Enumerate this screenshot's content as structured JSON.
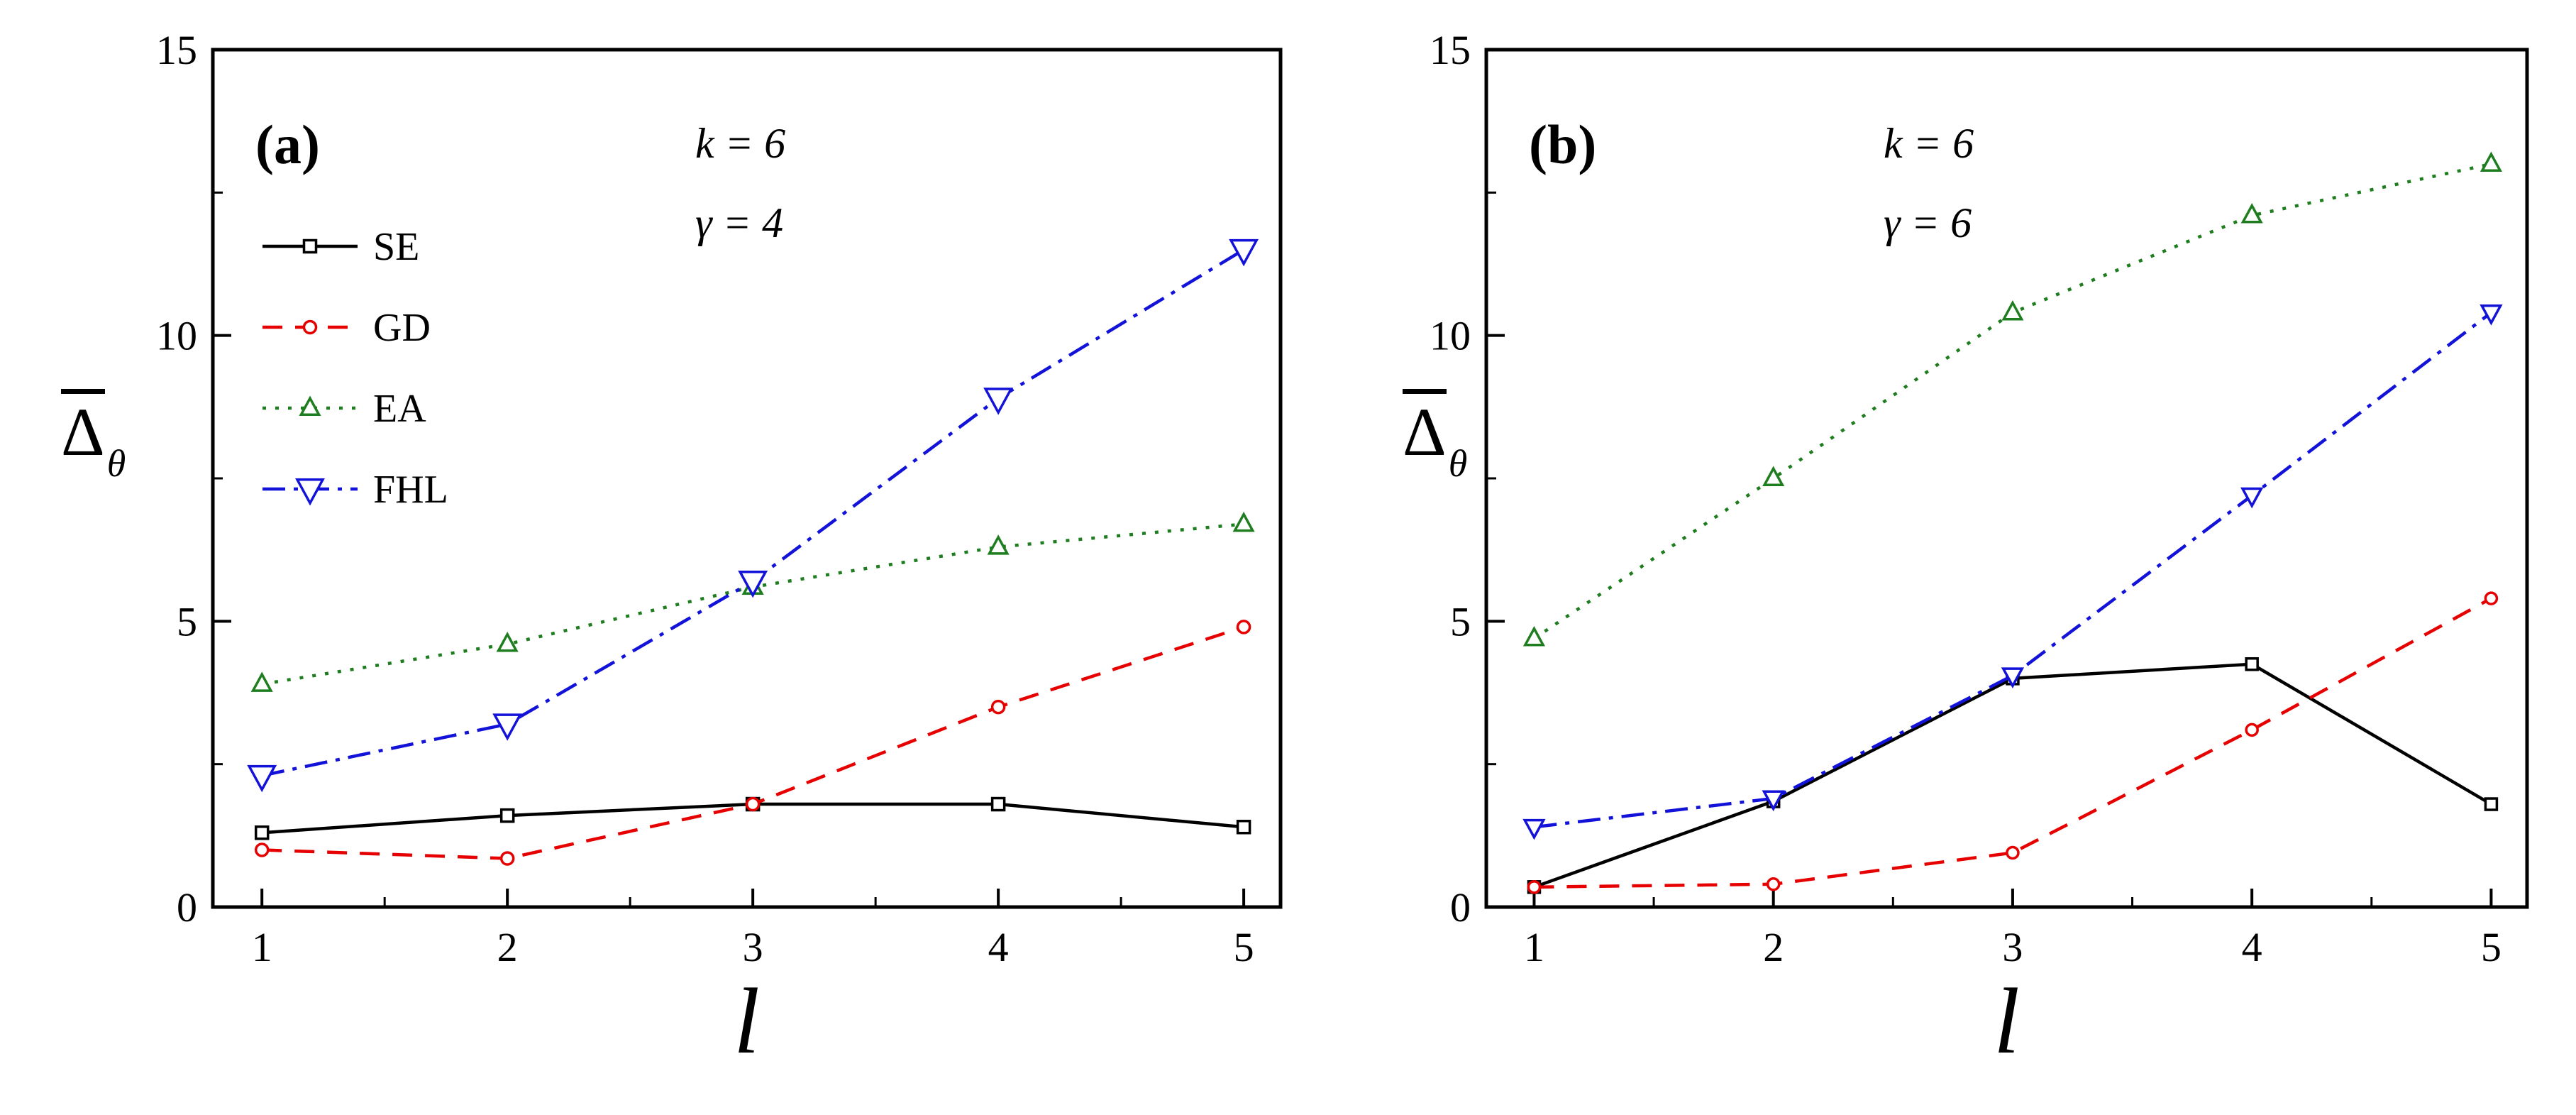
{
  "figure": {
    "background": "#ffffff"
  },
  "chart_data": [
    {
      "type": "line",
      "panel_label": "(a)",
      "annotations": [
        "k = 6",
        "γ = 4"
      ],
      "xlabel": "l",
      "ylabel": "Δ",
      "ylabel_sub": "θ",
      "x": [
        1,
        2,
        3,
        4,
        5
      ],
      "xlim": [
        0.8,
        5.15
      ],
      "ylim": [
        0,
        15
      ],
      "xticks": [
        1,
        2,
        3,
        4,
        5
      ],
      "yticks": [
        0,
        5,
        10,
        15
      ],
      "xticks_minor": [
        1.5,
        2.5,
        3.5,
        4.5
      ],
      "yticks_minor": [
        2.5,
        7.5,
        12.5
      ],
      "grid": false,
      "legend": {
        "show": true,
        "position": "upper-left"
      },
      "series": [
        {
          "name": "SE",
          "color": "#000000",
          "line_style": "solid",
          "marker": "square",
          "marker_size": 17,
          "values": [
            1.3,
            1.6,
            1.8,
            1.8,
            1.4
          ]
        },
        {
          "name": "GD",
          "color": "#e60000",
          "line_style": "dashed",
          "marker": "circle",
          "marker_size": 17,
          "values": [
            1.0,
            0.85,
            1.8,
            3.5,
            4.9
          ]
        },
        {
          "name": "EA",
          "color": "#1e7d1e",
          "line_style": "dotted",
          "marker": "triangle-up",
          "marker_size": 21,
          "values": [
            3.9,
            4.6,
            5.6,
            6.3,
            6.7
          ]
        },
        {
          "name": "FHL",
          "color": "#1212d9",
          "line_style": "dashdot",
          "marker": "triangle-down",
          "marker_size": 30,
          "values": [
            2.3,
            3.2,
            5.7,
            8.9,
            11.5
          ]
        }
      ]
    },
    {
      "type": "line",
      "panel_label": "(b)",
      "annotations": [
        "k = 6",
        "γ = 6"
      ],
      "xlabel": "l",
      "ylabel": "Δ",
      "ylabel_sub": "θ",
      "x": [
        1,
        2,
        3,
        4,
        5
      ],
      "xlim": [
        0.8,
        5.15
      ],
      "ylim": [
        0,
        15
      ],
      "xticks": [
        1,
        2,
        3,
        4,
        5
      ],
      "yticks": [
        0,
        5,
        10,
        15
      ],
      "xticks_minor": [
        1.5,
        2.5,
        3.5,
        4.5
      ],
      "yticks_minor": [
        2.5,
        7.5,
        12.5
      ],
      "grid": false,
      "legend": {
        "show": false,
        "position": "none"
      },
      "series": [
        {
          "name": "SE",
          "color": "#000000",
          "line_style": "solid",
          "marker": "square",
          "marker_size": 16,
          "values": [
            0.35,
            1.85,
            4.0,
            4.25,
            1.8
          ]
        },
        {
          "name": "GD",
          "color": "#e60000",
          "line_style": "dashed",
          "marker": "circle",
          "marker_size": 16,
          "values": [
            0.35,
            0.4,
            0.95,
            3.1,
            5.4
          ]
        },
        {
          "name": "EA",
          "color": "#1e7d1e",
          "line_style": "dotted",
          "marker": "triangle-up",
          "marker_size": 21,
          "values": [
            4.7,
            7.5,
            10.4,
            12.1,
            13.0
          ]
        },
        {
          "name": "FHL",
          "color": "#1212d9",
          "line_style": "dashdot",
          "marker": "triangle-down",
          "marker_size": 22,
          "values": [
            1.4,
            1.9,
            4.05,
            7.2,
            10.4
          ]
        }
      ]
    }
  ]
}
